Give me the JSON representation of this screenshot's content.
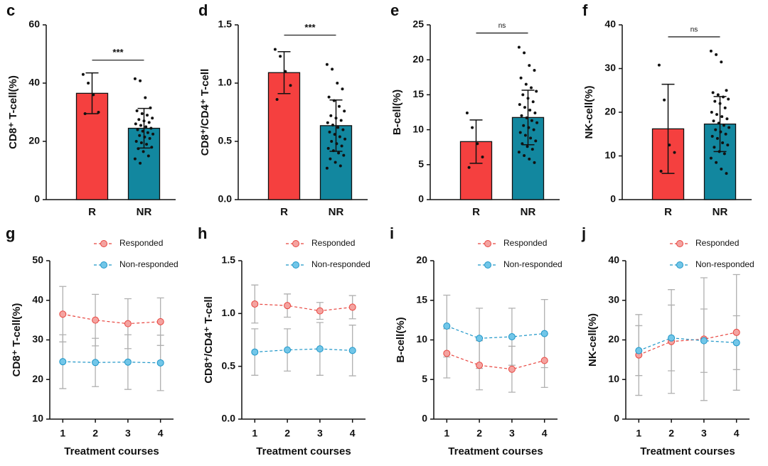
{
  "chart_data": [
    {
      "type": "bar",
      "panel": "c",
      "ylabel": "CD8⁺ T-cell(%)",
      "categories": [
        "R",
        "NR"
      ],
      "values": [
        36.5,
        24.5
      ],
      "errors": [
        7,
        6.8
      ],
      "colors": [
        "#f5403f",
        "#12879f"
      ],
      "points": [
        [
          43,
          40,
          36,
          30,
          29.5
        ],
        [
          41.5,
          40.8,
          35,
          31.5,
          30.5,
          29.5,
          29,
          28,
          27.5,
          27,
          26.5,
          26,
          25.5,
          25,
          24.5,
          24,
          23.5,
          23,
          22.5,
          22,
          21.5,
          21,
          20,
          19.5,
          19,
          18,
          17.5,
          16.5,
          15,
          14,
          12.5
        ]
      ],
      "significance": "***",
      "ylim": [
        0,
        60
      ],
      "yticks": [
        0,
        20,
        40,
        60
      ]
    },
    {
      "type": "bar",
      "panel": "d",
      "ylabel": "CD8⁺/CD4⁺ T-cell",
      "categories": [
        "R",
        "NR"
      ],
      "values": [
        1.09,
        0.635
      ],
      "errors": [
        0.18,
        0.22
      ],
      "colors": [
        "#f5403f",
        "#12879f"
      ],
      "points": [
        [
          1.29,
          1.23,
          1.1,
          0.98,
          0.86
        ],
        [
          1.16,
          1.12,
          1.0,
          0.95,
          0.88,
          0.85,
          0.8,
          0.76,
          0.72,
          0.7,
          0.68,
          0.66,
          0.64,
          0.62,
          0.6,
          0.58,
          0.56,
          0.54,
          0.52,
          0.5,
          0.48,
          0.46,
          0.44,
          0.42,
          0.4,
          0.38,
          0.35,
          0.32,
          0.29,
          0.27
        ]
      ],
      "significance": "***",
      "ylim": [
        0,
        1.5
      ],
      "yticks": [
        {
          "value": 0,
          "label": "0.0"
        },
        0.5,
        {
          "value": 1,
          "label": "1.0"
        },
        1.5
      ]
    },
    {
      "type": "bar",
      "panel": "e",
      "ylabel": "B-cell(%)",
      "categories": [
        "R",
        "NR"
      ],
      "values": [
        8.3,
        11.75
      ],
      "errors": [
        3.1,
        3.9
      ],
      "colors": [
        "#f5403f",
        "#12879f"
      ],
      "points": [
        [
          12.4,
          10.3,
          8.0,
          6.1,
          4.6
        ],
        [
          21.8,
          21,
          19.2,
          18.5,
          17.4,
          16.5,
          16,
          15.5,
          15,
          14.5,
          14,
          13.6,
          13.2,
          12.8,
          12.4,
          12,
          11.7,
          11.3,
          11,
          10.6,
          10.3,
          10,
          9.6,
          9.2,
          8.8,
          8.4,
          8,
          7.6,
          7.2,
          6.8,
          6.3,
          5.8,
          5.3
        ]
      ],
      "significance": "ns",
      "ylim": [
        0,
        25
      ],
      "yticks": [
        0,
        5,
        10,
        15,
        20,
        25
      ]
    },
    {
      "type": "bar",
      "panel": "f",
      "ylabel": "NK-cell(%)",
      "categories": [
        "R",
        "NR"
      ],
      "values": [
        16.2,
        17.3
      ],
      "errors": [
        10.2,
        6.3
      ],
      "colors": [
        "#f5403f",
        "#12879f"
      ],
      "points": [
        [
          30.8,
          22.8,
          12.5,
          10.8,
          6.5
        ],
        [
          34,
          33.2,
          31.5,
          25,
          24.5,
          24,
          23.5,
          23,
          22.5,
          22,
          21,
          20,
          19.5,
          19,
          18.5,
          18,
          17.5,
          17,
          16.5,
          16,
          15.5,
          15,
          14.5,
          14,
          13,
          12.5,
          12,
          11,
          10.5,
          9.5,
          8.5,
          7,
          6
        ]
      ],
      "significance": "ns",
      "ylim": [
        0,
        40
      ],
      "yticks": [
        0,
        10,
        20,
        30,
        40
      ]
    },
    {
      "type": "line",
      "panel": "g",
      "ylabel": "CD8⁺ T-cell(%)",
      "xlabel": "Treatment courses",
      "x": [
        1,
        2,
        3,
        4
      ],
      "xlim": [
        0.6,
        4.4
      ],
      "xticks": [
        1,
        2,
        3,
        4
      ],
      "ylim": [
        10,
        50
      ],
      "yticks": [
        10,
        20,
        30,
        40,
        50
      ],
      "series": [
        {
          "name": "Responded",
          "color": "#e8453f",
          "marker_color": "#f4a3a0",
          "values": [
            36.5,
            35,
            34.1,
            34.6
          ],
          "errors": [
            7,
            6.5,
            6.3,
            6
          ]
        },
        {
          "name": "Non-responded",
          "color": "#1e96c8",
          "marker_color": "#72c6e8",
          "values": [
            24.5,
            24.3,
            24.4,
            24.2
          ],
          "errors": [
            6.8,
            6.1,
            6.9,
            7
          ]
        }
      ]
    },
    {
      "type": "line",
      "panel": "h",
      "ylabel": "CD8⁺/CD4⁺ T-cell",
      "xlabel": "Treatment courses",
      "x": [
        1,
        2,
        3,
        4
      ],
      "xlim": [
        0.6,
        4.4
      ],
      "xticks": [
        1,
        2,
        3,
        4
      ],
      "ylim": [
        0,
        1.5
      ],
      "yticks": [
        {
          "value": 0,
          "label": "0.0"
        },
        0.5,
        {
          "value": 1,
          "label": "1.0"
        },
        1.5
      ],
      "series": [
        {
          "name": "Responded",
          "color": "#e8453f",
          "marker_color": "#f4a3a0",
          "values": [
            1.09,
            1.075,
            1.025,
            1.06
          ],
          "errors": [
            0.18,
            0.11,
            0.08,
            0.11
          ]
        },
        {
          "name": "Non-responded",
          "color": "#1e96c8",
          "marker_color": "#72c6e8",
          "values": [
            0.635,
            0.655,
            0.665,
            0.65
          ],
          "errors": [
            0.22,
            0.2,
            0.25,
            0.24
          ]
        }
      ]
    },
    {
      "type": "line",
      "panel": "i",
      "ylabel": "B-cell(%)",
      "xlabel": "Treatment courses",
      "x": [
        1,
        2,
        3,
        4
      ],
      "xlim": [
        0.6,
        4.4
      ],
      "xticks": [
        1,
        2,
        3,
        4
      ],
      "ylim": [
        0,
        20
      ],
      "yticks": [
        0,
        5,
        10,
        15,
        20
      ],
      "series": [
        {
          "name": "Responded",
          "color": "#e8453f",
          "marker_color": "#f4a3a0",
          "values": [
            8.3,
            6.8,
            6.3,
            7.4
          ],
          "errors": [
            3.1,
            3.1,
            2.9,
            3.4
          ]
        },
        {
          "name": "Non-responded",
          "color": "#1e96c8",
          "marker_color": "#72c6e8",
          "values": [
            11.75,
            10.2,
            10.4,
            10.8
          ],
          "errors": [
            3.9,
            3.8,
            3.6,
            4.3
          ]
        }
      ]
    },
    {
      "type": "line",
      "panel": "j",
      "ylabel": "NK-cell(%)",
      "xlabel": "Treatment courses",
      "x": [
        1,
        2,
        3,
        4
      ],
      "xlim": [
        0.6,
        4.4
      ],
      "xticks": [
        1,
        2,
        3,
        4
      ],
      "ylim": [
        0,
        40
      ],
      "yticks": [
        0,
        10,
        20,
        30,
        40
      ],
      "series": [
        {
          "name": "Responded",
          "color": "#e8453f",
          "marker_color": "#f4a3a0",
          "values": [
            16.2,
            19.6,
            20.2,
            21.9
          ],
          "errors": [
            10.2,
            13.1,
            15.5,
            14.6
          ]
        },
        {
          "name": "Non-responded",
          "color": "#1e96c8",
          "marker_color": "#72c6e8",
          "values": [
            17.3,
            20.5,
            19.8,
            19.3
          ],
          "errors": [
            6.3,
            8.3,
            8.0,
            6.8
          ]
        }
      ]
    }
  ]
}
